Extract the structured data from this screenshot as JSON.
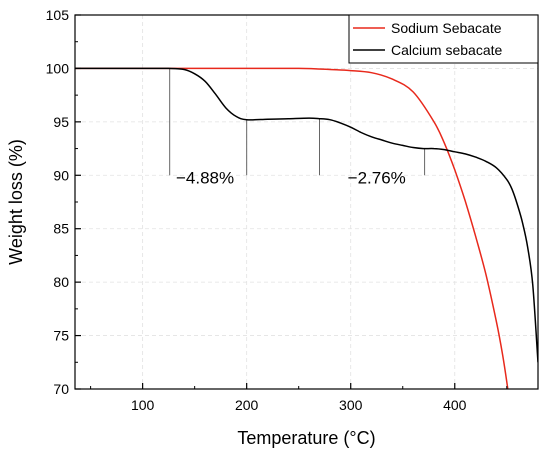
{
  "chart_data": {
    "type": "line",
    "title": "",
    "xlabel": "Temperature (°C)",
    "ylabel": "Weight loss (%)",
    "xlim": [
      35,
      480
    ],
    "ylim": [
      70,
      105
    ],
    "xticks": [
      100,
      200,
      300,
      400
    ],
    "yticks": [
      70,
      75,
      80,
      85,
      90,
      95,
      100,
      105
    ],
    "grid": true,
    "legend_position": "top-right",
    "series": [
      {
        "name": "Sodium Sebacate",
        "color": "#e8291c",
        "x": [
          35,
          100,
          200,
          250,
          280,
          300,
          320,
          340,
          360,
          380,
          390,
          400,
          410,
          420,
          430,
          440,
          446,
          451
        ],
        "y": [
          100,
          100,
          100,
          100,
          99.9,
          99.8,
          99.6,
          99.0,
          97.8,
          95.0,
          93.0,
          90.5,
          87.6,
          84.3,
          80.7,
          76.3,
          73.2,
          70.0
        ]
      },
      {
        "name": "Calcium sebacate",
        "color": "#000000",
        "x": [
          35,
          100,
          125,
          140,
          150,
          160,
          170,
          180,
          190,
          200,
          220,
          240,
          260,
          270,
          280,
          290,
          300,
          310,
          320,
          330,
          340,
          350,
          360,
          370,
          380,
          390,
          400,
          410,
          420,
          430,
          440,
          450,
          455,
          460,
          465,
          470,
          475,
          480
        ],
        "y": [
          100,
          100,
          100,
          99.9,
          99.5,
          98.8,
          97.6,
          96.3,
          95.5,
          95.2,
          95.25,
          95.3,
          95.35,
          95.3,
          95.2,
          94.9,
          94.5,
          94.0,
          93.6,
          93.3,
          93.0,
          92.8,
          92.6,
          92.5,
          92.5,
          92.4,
          92.2,
          92.0,
          91.7,
          91.3,
          90.7,
          89.6,
          88.7,
          87.3,
          85.6,
          83.3,
          79.7,
          72.5
        ]
      }
    ],
    "annotations": [
      {
        "text": "−4.88%",
        "x": 160,
        "y": 89.6,
        "markers": [
          {
            "x": 126,
            "y_top": 100,
            "y_bottom": 90
          },
          {
            "x": 200,
            "y_top": 95.2,
            "y_bottom": 90
          }
        ]
      },
      {
        "text": "−2.76%",
        "x": 325,
        "y": 89.6,
        "markers": [
          {
            "x": 270,
            "y_top": 95.3,
            "y_bottom": 90
          },
          {
            "x": 371,
            "y_top": 92.5,
            "y_bottom": 90
          }
        ]
      }
    ]
  }
}
